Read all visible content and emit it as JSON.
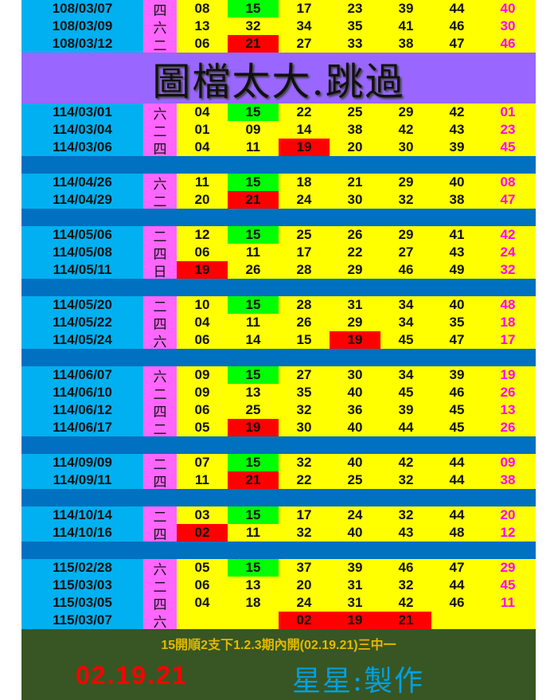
{
  "colors": {
    "date_bg": "#00b0f0",
    "day_bg": "#ff66ff",
    "cell_bg": "#ffff00",
    "green": "#00ff00",
    "red": "#ff0000",
    "special": "#ff00ff",
    "separator": "#0070c0",
    "banner": "#9966ff",
    "footer": "#375623"
  },
  "banner": "圖檔太大.跳過",
  "groups": [
    [
      {
        "date": "108/03/07",
        "day": "四",
        "nums": [
          "08",
          "15",
          "17",
          "23",
          "39",
          "44",
          "40"
        ],
        "green": [
          1
        ],
        "red": []
      },
      {
        "date": "108/03/09",
        "day": "六",
        "nums": [
          "13",
          "32",
          "34",
          "35",
          "41",
          "46",
          "30"
        ],
        "green": [],
        "red": []
      },
      {
        "date": "108/03/12",
        "day": "二",
        "nums": [
          "06",
          "21",
          "27",
          "33",
          "38",
          "47",
          "46"
        ],
        "green": [],
        "red": [
          1
        ]
      }
    ],
    "banner",
    [
      {
        "date": "114/03/01",
        "day": "六",
        "nums": [
          "04",
          "15",
          "22",
          "25",
          "29",
          "42",
          "01"
        ],
        "green": [
          1
        ],
        "red": []
      },
      {
        "date": "114/03/04",
        "day": "二",
        "nums": [
          "01",
          "09",
          "14",
          "38",
          "42",
          "43",
          "23"
        ],
        "green": [],
        "red": []
      },
      {
        "date": "114/03/06",
        "day": "四",
        "nums": [
          "04",
          "11",
          "19",
          "20",
          "30",
          "39",
          "45"
        ],
        "green": [],
        "red": [
          2
        ]
      }
    ],
    [
      {
        "date": "114/04/26",
        "day": "六",
        "nums": [
          "11",
          "15",
          "18",
          "21",
          "29",
          "40",
          "08"
        ],
        "green": [
          1
        ],
        "red": []
      },
      {
        "date": "114/04/29",
        "day": "二",
        "nums": [
          "20",
          "21",
          "24",
          "30",
          "32",
          "38",
          "47"
        ],
        "green": [],
        "red": [
          1
        ]
      }
    ],
    [
      {
        "date": "114/05/06",
        "day": "二",
        "nums": [
          "12",
          "15",
          "25",
          "26",
          "29",
          "41",
          "42"
        ],
        "green": [
          1
        ],
        "red": []
      },
      {
        "date": "114/05/08",
        "day": "四",
        "nums": [
          "06",
          "11",
          "17",
          "22",
          "27",
          "43",
          "24"
        ],
        "green": [],
        "red": []
      },
      {
        "date": "114/05/11",
        "day": "日",
        "nums": [
          "19",
          "26",
          "28",
          "29",
          "46",
          "49",
          "32"
        ],
        "green": [],
        "red": [
          0
        ]
      }
    ],
    [
      {
        "date": "114/05/20",
        "day": "二",
        "nums": [
          "10",
          "15",
          "28",
          "31",
          "34",
          "40",
          "48"
        ],
        "green": [
          1
        ],
        "red": []
      },
      {
        "date": "114/05/22",
        "day": "四",
        "nums": [
          "04",
          "11",
          "26",
          "29",
          "34",
          "35",
          "18"
        ],
        "green": [],
        "red": []
      },
      {
        "date": "114/05/24",
        "day": "六",
        "nums": [
          "06",
          "14",
          "15",
          "19",
          "45",
          "47",
          "17"
        ],
        "green": [],
        "red": [
          3
        ]
      }
    ],
    [
      {
        "date": "114/06/07",
        "day": "六",
        "nums": [
          "09",
          "15",
          "27",
          "30",
          "34",
          "39",
          "19"
        ],
        "green": [
          1
        ],
        "red": []
      },
      {
        "date": "114/06/10",
        "day": "二",
        "nums": [
          "09",
          "13",
          "35",
          "40",
          "45",
          "46",
          "26"
        ],
        "green": [],
        "red": []
      },
      {
        "date": "114/06/12",
        "day": "四",
        "nums": [
          "06",
          "25",
          "32",
          "36",
          "39",
          "45",
          "13"
        ],
        "green": [],
        "red": []
      },
      {
        "date": "114/06/17",
        "day": "二",
        "nums": [
          "05",
          "19",
          "30",
          "40",
          "44",
          "45",
          "26"
        ],
        "green": [],
        "red": [
          1
        ]
      }
    ],
    [
      {
        "date": "114/09/09",
        "day": "二",
        "nums": [
          "07",
          "15",
          "32",
          "40",
          "42",
          "44",
          "09"
        ],
        "green": [
          1
        ],
        "red": []
      },
      {
        "date": "114/09/11",
        "day": "四",
        "nums": [
          "11",
          "21",
          "22",
          "25",
          "32",
          "44",
          "38"
        ],
        "green": [],
        "red": [
          1
        ]
      }
    ],
    [
      {
        "date": "114/10/14",
        "day": "二",
        "nums": [
          "03",
          "15",
          "17",
          "24",
          "32",
          "44",
          "20"
        ],
        "green": [
          1
        ],
        "red": []
      },
      {
        "date": "114/10/16",
        "day": "四",
        "nums": [
          "02",
          "11",
          "32",
          "40",
          "43",
          "48",
          "12"
        ],
        "green": [],
        "red": [
          0
        ]
      }
    ],
    [
      {
        "date": "115/02/28",
        "day": "六",
        "nums": [
          "05",
          "15",
          "37",
          "39",
          "46",
          "47",
          "29"
        ],
        "green": [
          1
        ],
        "red": []
      },
      {
        "date": "115/03/03",
        "day": "二",
        "nums": [
          "06",
          "13",
          "20",
          "31",
          "32",
          "44",
          "45"
        ],
        "green": [],
        "red": []
      },
      {
        "date": "115/03/05",
        "day": "四",
        "nums": [
          "04",
          "18",
          "24",
          "31",
          "42",
          "46",
          "11"
        ],
        "green": [],
        "red": []
      },
      {
        "date": "115/03/07",
        "day": "六",
        "nums": [
          "",
          "",
          "02",
          "19",
          "21",
          "",
          ""
        ],
        "green": [],
        "red": [
          2,
          3,
          4
        ]
      }
    ]
  ],
  "footer": {
    "note": "15開順2支下1.2.3期內開(02.19.21)三中一",
    "result": "02.19.21",
    "maker": "星星:製作"
  }
}
